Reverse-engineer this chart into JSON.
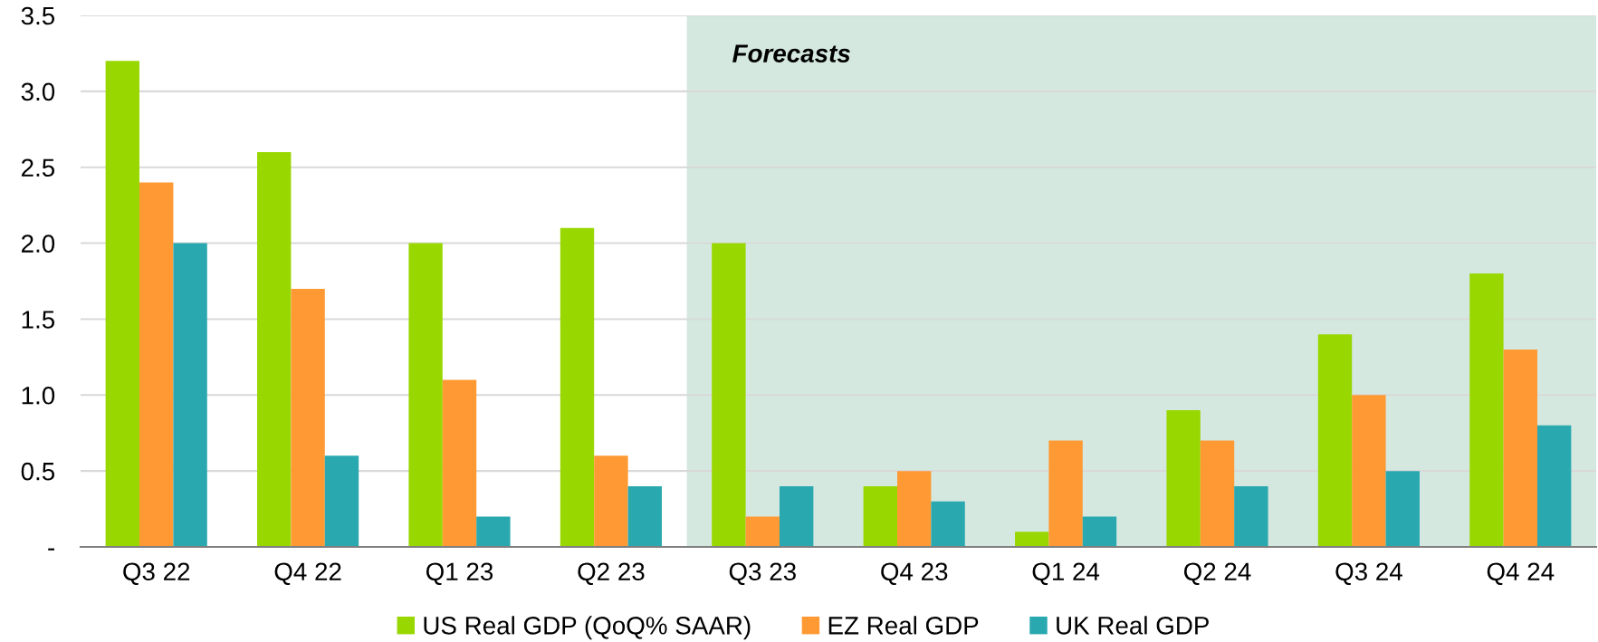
{
  "chart_data": {
    "type": "bar",
    "categories": [
      "Q3 22",
      "Q4 22",
      "Q1 23",
      "Q2 23",
      "Q3 23",
      "Q4 23",
      "Q1 24",
      "Q2 24",
      "Q3 24",
      "Q4 24"
    ],
    "series": [
      {
        "name": "US Real GDP (QoQ% SAAR)",
        "color": "#99d700",
        "values": [
          3.2,
          2.6,
          2.0,
          2.1,
          2.0,
          0.4,
          0.1,
          0.9,
          1.4,
          1.8
        ]
      },
      {
        "name": "EZ Real GDP",
        "color": "#ff9933",
        "values": [
          2.4,
          1.7,
          1.1,
          0.6,
          0.2,
          0.5,
          0.7,
          0.7,
          1.0,
          1.3
        ]
      },
      {
        "name": "UK Real GDP",
        "color": "#2aa8b0",
        "values": [
          2.0,
          0.6,
          0.2,
          0.4,
          0.4,
          0.3,
          0.2,
          0.4,
          0.5,
          0.8
        ]
      }
    ],
    "ylim": [
      0,
      3.5
    ],
    "yticks": [
      {
        "value": 0,
        "label": "-"
      },
      0.5,
      {
        "value": 1,
        "label": "1.0"
      },
      1.5,
      {
        "value": 2,
        "label": "2.0"
      },
      2.5,
      {
        "value": 3,
        "label": "3.0"
      },
      3.5
    ],
    "grid": "y",
    "legend": "bottom",
    "bands": [
      {
        "axis": "x",
        "from": "Q3 23",
        "to": "Q4 24",
        "label": "Forecasts",
        "color": "#d4e8e0"
      }
    ]
  }
}
